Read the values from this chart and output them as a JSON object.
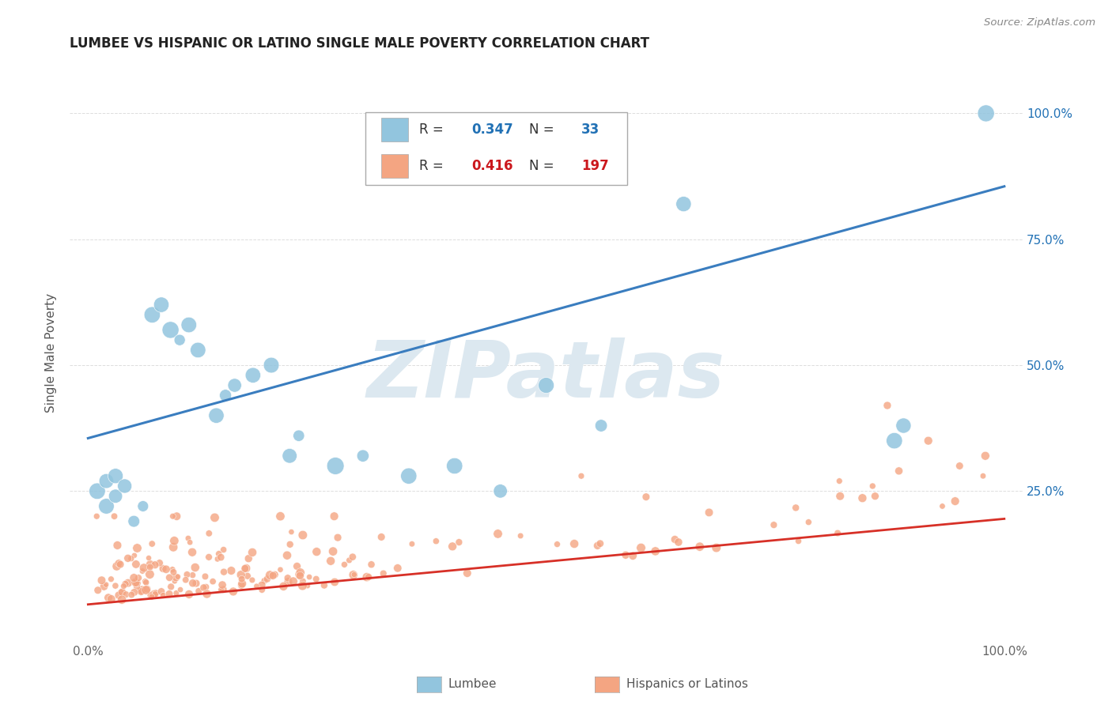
{
  "title": "LUMBEE VS HISPANIC OR LATINO SINGLE MALE POVERTY CORRELATION CHART",
  "source": "Source: ZipAtlas.com",
  "ylabel": "Single Male Poverty",
  "xlim": [
    0.0,
    1.0
  ],
  "ylim": [
    -0.05,
    1.1
  ],
  "lumbee_R": 0.347,
  "lumbee_N": 33,
  "hispanic_R": 0.416,
  "hispanic_N": 197,
  "lumbee_color": "#92c5de",
  "hispanic_color": "#f4a582",
  "lumbee_line_color": "#3a7dbf",
  "hispanic_line_color": "#d73027",
  "background_color": "#ffffff",
  "watermark_text": "ZIPatlas",
  "watermark_color": "#dce8f0",
  "lumbee_line_x0": 0.0,
  "lumbee_line_x1": 1.0,
  "lumbee_line_y0": 0.355,
  "lumbee_line_y1": 0.855,
  "hispanic_line_x0": 0.0,
  "hispanic_line_x1": 1.0,
  "hispanic_line_y0": 0.025,
  "hispanic_line_y1": 0.195,
  "grid_color": "#dddddd",
  "tick_color": "#666666",
  "title_color": "#222222",
  "source_color": "#888888",
  "legend_R_label": "R = ",
  "legend_N_label": "N = ",
  "lumbee_value_color": "#2171b5",
  "hispanic_value_color": "#cb181d"
}
